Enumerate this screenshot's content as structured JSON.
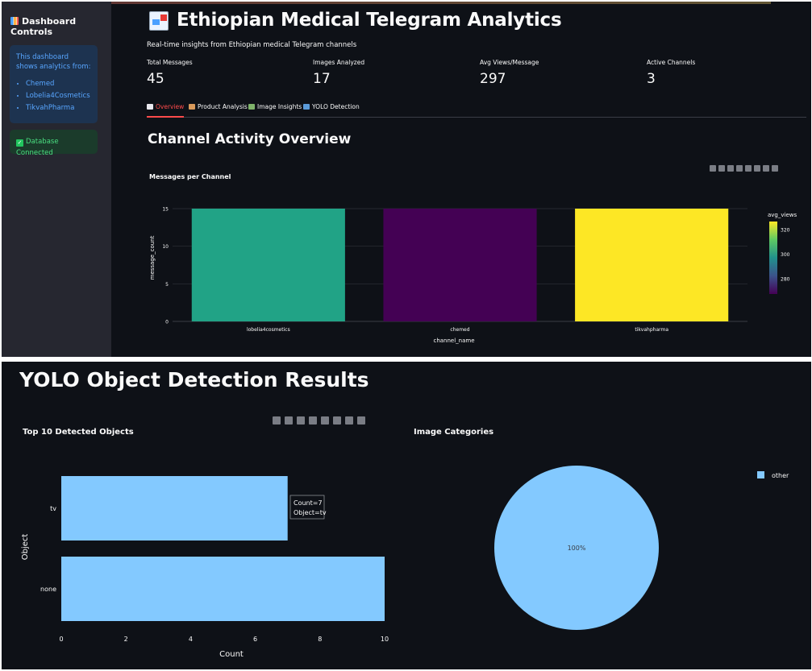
{
  "sidebar": {
    "title": "Dashboard Controls",
    "info_text": "This dashboard shows analytics from:",
    "channels": [
      "Chemed",
      "Lobelia4Cosmetics",
      "TikvahPharma"
    ],
    "db_status": "Database Connected"
  },
  "header": {
    "title": "Ethiopian Medical Telegram Analytics",
    "subtitle": "Real-time insights from Ethiopian medical Telegram channels"
  },
  "metrics": [
    {
      "label": "Total Messages",
      "value": "45"
    },
    {
      "label": "Images Analyzed",
      "value": "17"
    },
    {
      "label": "Avg Views/Message",
      "value": "297"
    },
    {
      "label": "Active Channels",
      "value": "3"
    }
  ],
  "tabs": [
    {
      "label": "Overview",
      "icon": "chart-increasing-icon",
      "active": true
    },
    {
      "label": "Product Analysis",
      "icon": "package-icon",
      "active": false
    },
    {
      "label": "Image Insights",
      "icon": "picture-icon",
      "active": false
    },
    {
      "label": "YOLO Detection",
      "icon": "bar-chart-icon",
      "active": false
    }
  ],
  "overview": {
    "section_title": "Channel Activity Overview",
    "chart_title": "Messages per Channel"
  },
  "yolo": {
    "section_title": "YOLO Object Detection Results",
    "bar_title": "Top 10 Detected Objects",
    "pie_title": "Image Categories",
    "tooltip_lines": [
      "Count=7",
      "Object=tv"
    ]
  },
  "colors": {
    "background": "#0e1117",
    "sidebar": "#262730",
    "accent": "#ff4b4b",
    "bar_blue": "#83c9ff"
  },
  "chart_data": [
    {
      "type": "bar",
      "title": "Messages per Channel",
      "xlabel": "channel_name",
      "ylabel": "message_count",
      "categories": [
        "lobelia4cosmetics",
        "chemed",
        "tikvahpharma"
      ],
      "values": [
        15,
        15,
        15
      ],
      "color_values": [
        300,
        270,
        325
      ],
      "colors": [
        "#21a386",
        "#440154",
        "#fde725"
      ],
      "ylim": [
        0,
        15
      ],
      "yticks": [
        0,
        5,
        10,
        15
      ],
      "colorbar": {
        "title": "avg_views",
        "ticks": [
          280,
          300,
          320
        ],
        "range": [
          268,
          327
        ]
      }
    },
    {
      "type": "bar",
      "orientation": "horizontal",
      "title": "Top 10 Detected Objects",
      "xlabel": "Count",
      "ylabel": "Object",
      "categories": [
        "tv",
        "none"
      ],
      "values": [
        7,
        10
      ],
      "xlim": [
        0,
        10
      ],
      "xticks": [
        0,
        2,
        4,
        6,
        8,
        10
      ]
    },
    {
      "type": "pie",
      "title": "Image Categories",
      "labels": [
        "other"
      ],
      "values": [
        100
      ],
      "slice_label": "100%",
      "legend_position": "top-right"
    }
  ]
}
